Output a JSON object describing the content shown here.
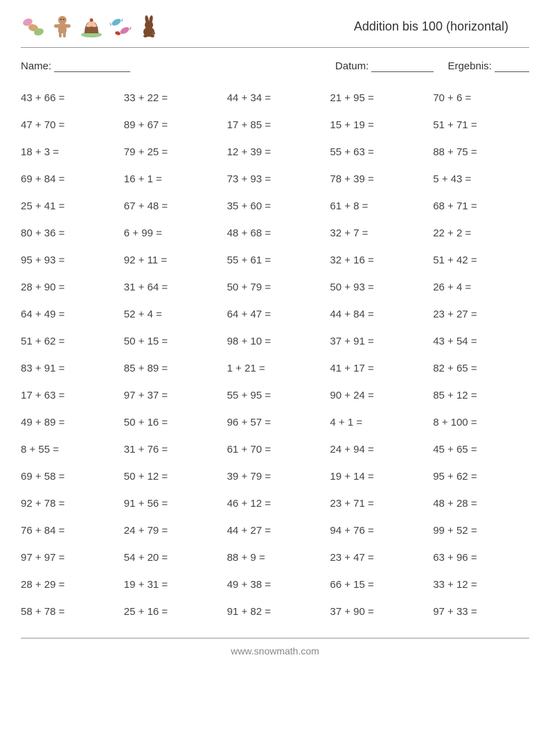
{
  "title": "Addition bis 100 (horizontal)",
  "labels": {
    "name": "Name:",
    "datum": "Datum:",
    "ergebnis": "Ergebnis:"
  },
  "footer": "www.snowmath.com",
  "icon_colors": {
    "macaron1": "#e89ab8",
    "macaron2": "#d4a574",
    "macaron3": "#9bc47a",
    "gingerbread": "#c8956d",
    "pudding_top": "#f4c2a1",
    "pudding_base": "#8b5a3c",
    "plate": "#9acd8a",
    "candy1": "#6bb5d4",
    "candy2": "#d47aa8",
    "bean": "#b8442c",
    "bunny": "#7a4a2c"
  },
  "problems": [
    [
      "43 + 66 =",
      "33 + 22 =",
      "44 + 34 =",
      "21 + 95 =",
      "70 + 6 ="
    ],
    [
      "47 + 70 =",
      "89 + 67 =",
      "17 + 85 =",
      "15 + 19 =",
      "51 + 71 ="
    ],
    [
      "18 + 3 =",
      "79 + 25 =",
      "12 + 39 =",
      "55 + 63 =",
      "88 + 75 ="
    ],
    [
      "69 + 84 =",
      "16 + 1 =",
      "73 + 93 =",
      "78 + 39 =",
      "5 + 43 ="
    ],
    [
      "25 + 41 =",
      "67 + 48 =",
      "35 + 60 =",
      "61 + 8 =",
      "68 + 71 ="
    ],
    [
      "80 + 36 =",
      "6 + 99 =",
      "48 + 68 =",
      "32 + 7 =",
      "22 + 2 ="
    ],
    [
      "95 + 93 =",
      "92 + 11 =",
      "55 + 61 =",
      "32 + 16 =",
      "51 + 42 ="
    ],
    [
      "28 + 90 =",
      "31 + 64 =",
      "50 + 79 =",
      "50 + 93 =",
      "26 + 4 ="
    ],
    [
      "64 + 49 =",
      "52 + 4 =",
      "64 + 47 =",
      "44 + 84 =",
      "23 + 27 ="
    ],
    [
      "51 + 62 =",
      "50 + 15 =",
      "98 + 10 =",
      "37 + 91 =",
      "43 + 54 ="
    ],
    [
      "83 + 91 =",
      "85 + 89 =",
      "1 + 21 =",
      "41 + 17 =",
      "82 + 65 ="
    ],
    [
      "17 + 63 =",
      "97 + 37 =",
      "55 + 95 =",
      "90 + 24 =",
      "85 + 12 ="
    ],
    [
      "49 + 89 =",
      "50 + 16 =",
      "96 + 57 =",
      "4 + 1 =",
      "8 + 100 ="
    ],
    [
      "8 + 55 =",
      "31 + 76 =",
      "61 + 70 =",
      "24 + 94 =",
      "45 + 65 ="
    ],
    [
      "69 + 58 =",
      "50 + 12 =",
      "39 + 79 =",
      "19 + 14 =",
      "95 + 62 ="
    ],
    [
      "92 + 78 =",
      "91 + 56 =",
      "46 + 12 =",
      "23 + 71 =",
      "48 + 28 ="
    ],
    [
      "76 + 84 =",
      "24 + 79 =",
      "44 + 27 =",
      "94 + 76 =",
      "99 + 52 ="
    ],
    [
      "97 + 97 =",
      "54 + 20 =",
      "88 + 9 =",
      "23 + 47 =",
      "63 + 96 ="
    ],
    [
      "28 + 29 =",
      "19 + 31 =",
      "49 + 38 =",
      "66 + 15 =",
      "33 + 12 ="
    ],
    [
      "58 + 78 =",
      "25 + 16 =",
      "91 + 82 =",
      "37 + 90 =",
      "97 + 33 ="
    ]
  ]
}
